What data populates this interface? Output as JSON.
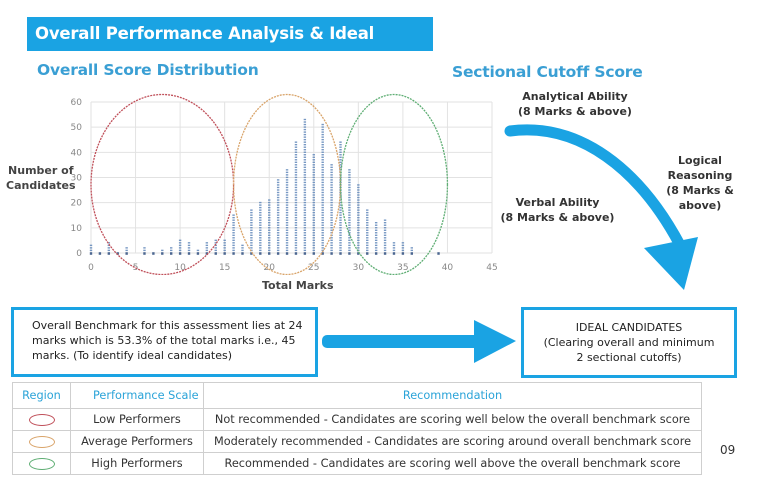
{
  "header": {
    "title": "Overall Performance Analysis & Ideal Candidates"
  },
  "distribution": {
    "heading": "Overall Score Distribution",
    "ylabel_line1": "Number of",
    "ylabel_line2": "Candidates",
    "xlabel": "Total Marks"
  },
  "cutoff": {
    "heading": "Sectional Cutoff Score",
    "analytical": {
      "name": "Analytical Ability",
      "rule": "(8 Marks & above)"
    },
    "logical": {
      "name": "Logical Reasoning",
      "rule": "(8 Marks & above)"
    },
    "verbal": {
      "name": "Verbal Ability",
      "rule": "(8 Marks & above)"
    }
  },
  "benchmark": {
    "line1": "Overall Benchmark for this assessment lies at 24",
    "line2": "marks which is 53.3% of the total marks i.e., 45",
    "line3": "marks. (To identify ideal candidates)"
  },
  "ideal": {
    "title": "IDEAL CANDIDATES",
    "line1": "(Clearing overall and minimum",
    "line2": "2 sectional cutoffs)"
  },
  "legend": {
    "headers": {
      "region": "Region",
      "scale": "Performance Scale",
      "recommendation": "Recommendation"
    },
    "rows": [
      {
        "color": "#c0505a",
        "scale": "Low Performers",
        "recommendation": "Not recommended - Candidates are scoring well below the overall benchmark score"
      },
      {
        "color": "#d9a46a",
        "scale": "Average Performers",
        "recommendation": "Moderately recommended - Candidates are scoring around overall benchmark score"
      },
      {
        "color": "#5fae74",
        "scale": "High Performers",
        "recommendation": "Recommended - Candidates are scoring well above the overall benchmark score"
      }
    ]
  },
  "page_number": "09",
  "colors": {
    "accent": "#1aa3e3",
    "heading": "#3a9fd4",
    "dots": "#4a6fa5"
  },
  "chart_data": {
    "type": "scatter",
    "title": "Overall Score Distribution",
    "xlabel": "Total Marks",
    "ylabel": "Number of Candidates",
    "xlim": [
      0,
      45
    ],
    "ylim": [
      0,
      60
    ],
    "xticks": [
      0,
      5,
      10,
      15,
      20,
      25,
      30,
      35,
      40,
      45
    ],
    "yticks": [
      0,
      10,
      20,
      30,
      40,
      50,
      60
    ],
    "grid": true,
    "x": [
      0,
      1,
      2,
      3,
      4,
      6,
      7,
      8,
      9,
      10,
      11,
      12,
      13,
      14,
      15,
      16,
      17,
      18,
      19,
      20,
      21,
      22,
      23,
      24,
      25,
      26,
      27,
      28,
      29,
      30,
      31,
      32,
      33,
      34,
      35,
      36,
      39
    ],
    "values": [
      4,
      1,
      5,
      1,
      3,
      3,
      1,
      2,
      3,
      6,
      5,
      2,
      5,
      6,
      6,
      16,
      4,
      18,
      21,
      22,
      30,
      34,
      45,
      54,
      40,
      52,
      36,
      45,
      34,
      28,
      18,
      13,
      14,
      5,
      5,
      3,
      1
    ],
    "regions": [
      {
        "name": "Low Performers",
        "color": "#c0505a",
        "range": [
          0,
          16
        ]
      },
      {
        "name": "Average Performers",
        "color": "#d9a46a",
        "range": [
          16,
          28
        ]
      },
      {
        "name": "High Performers",
        "color": "#5fae74",
        "range": [
          28,
          40
        ]
      }
    ]
  }
}
